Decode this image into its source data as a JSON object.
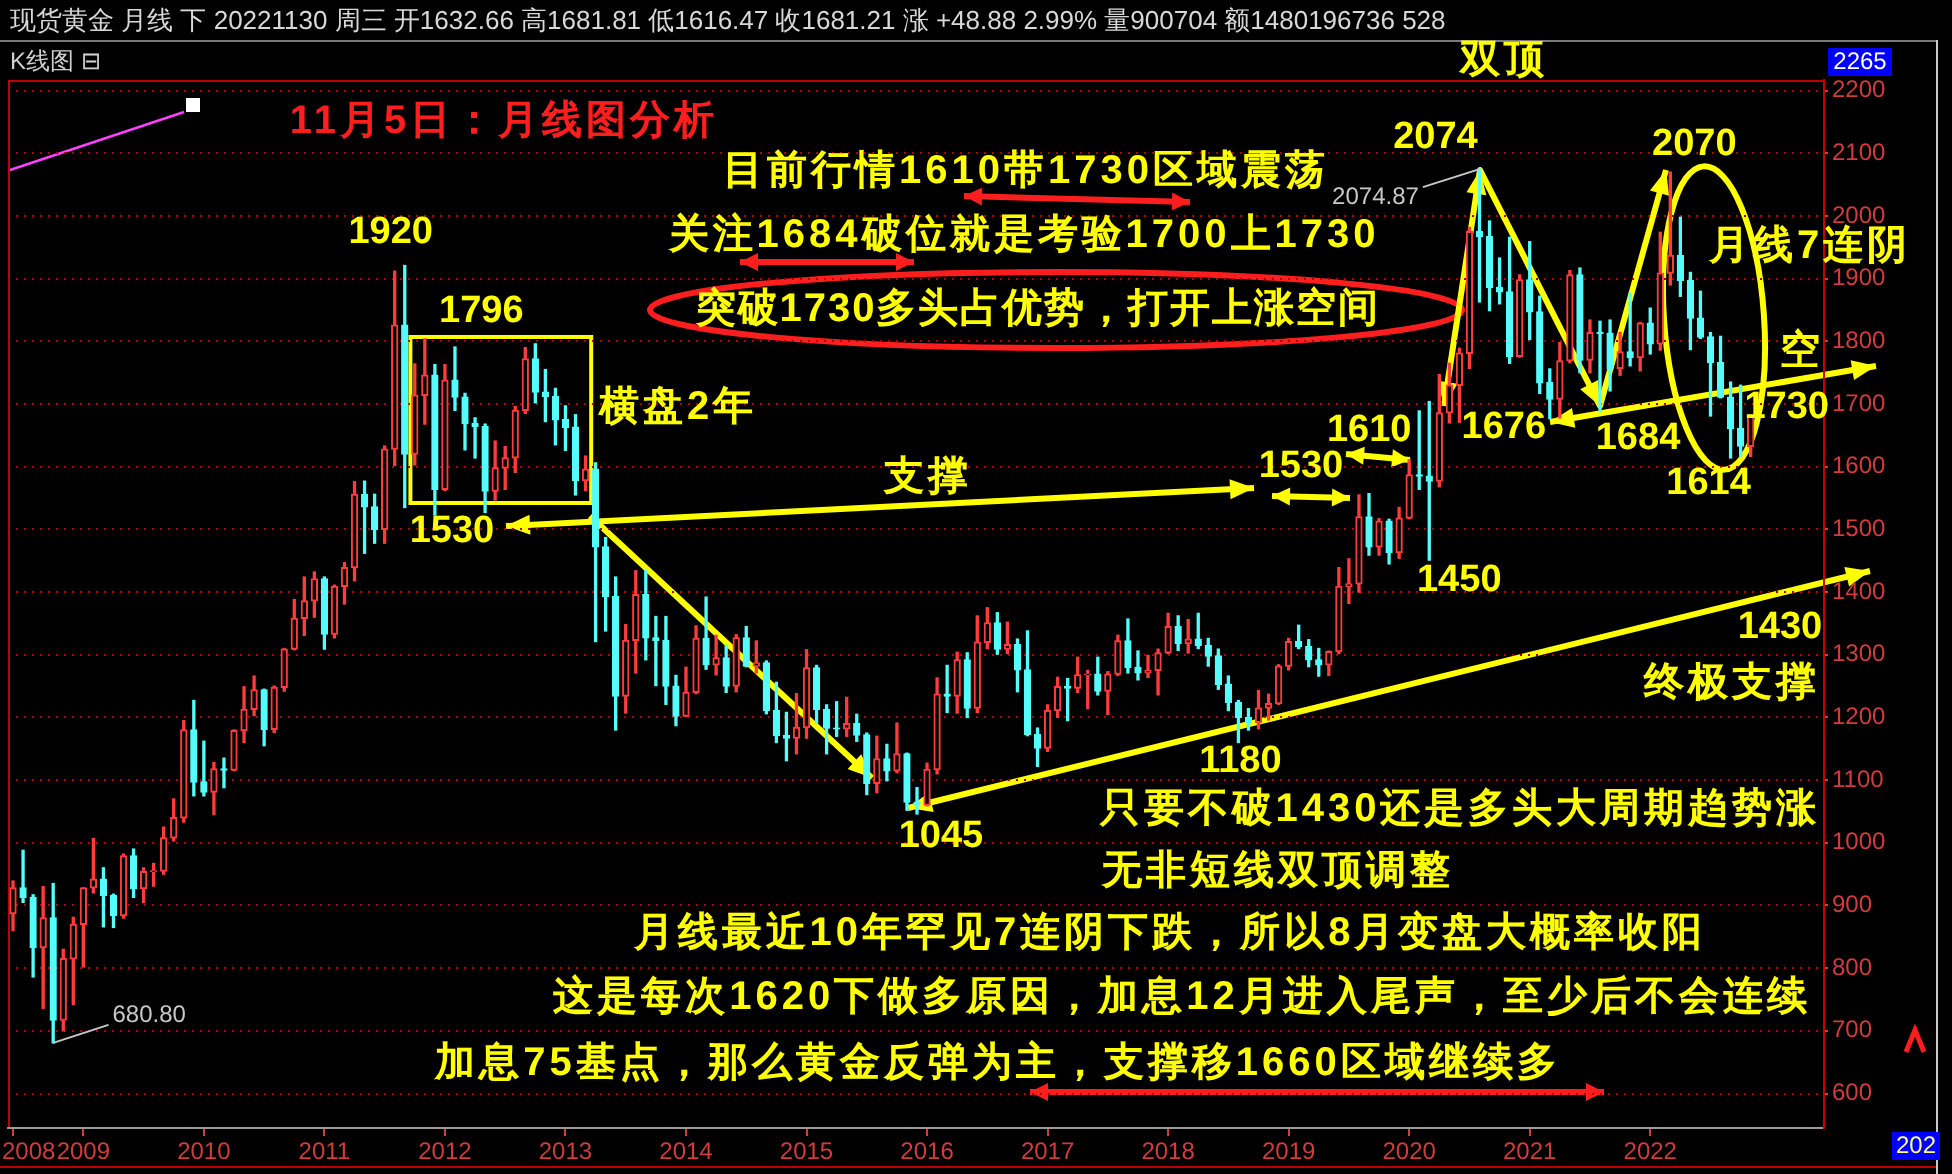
{
  "chart_data": {
    "type": "candlestick",
    "title": "11月5日：月线图分析",
    "subtitle": "现货黄金 月线 下 20221130 周三 开1632.66 高1681.81 低1616.47 收1681.21 涨 +48.88 2.99% 量900704 额1480196736 528",
    "annotations": [
      "K线图 ⊟",
      "2265",
      "202",
      "目前行情1610带1730区域震荡",
      "关注1684破位就是考验1700上1730",
      "突破1730多头占优势，打开上涨空间",
      "横盘2年",
      "支撑",
      "双顶",
      "月线7连阴",
      "空",
      "终极支撑",
      "只要不破1430还是多头大周期趋势涨",
      "无非短线双顶调整",
      "月线最近10年罕见7连阴下跌，所以8月变盘大概率收阳",
      "这是每次1620下做多原因，加息12月进入尾声，至少后不会连续",
      "加息75基点，那么黄金反弹为主，支撑移1660区域继续多",
      {
        "text": "1920",
        "x": "2011-09",
        "y": 1920
      },
      {
        "text": "1796",
        "x": "2012-10",
        "y": 1796
      },
      "1530",
      {
        "text": "1045",
        "x": "2015-12",
        "y": 1045
      },
      {
        "text": "1180",
        "x": "2018-08",
        "y": 1180
      },
      {
        "text": "1450",
        "x": "2020-03",
        "y": 1450
      },
      {
        "text": "1610",
        "x": "2020-01",
        "y": 1610
      },
      {
        "text": "1530",
        "x": "2019-08",
        "y": 1530
      },
      {
        "text": "1676",
        "x": "2021-03",
        "y": 1676
      },
      {
        "text": "1684",
        "x": "2021-08",
        "y": 1684
      },
      {
        "text": "2074",
        "x": "2020-08",
        "y": 2074
      },
      {
        "text": "2070",
        "x": "2022-03",
        "y": 2070
      },
      {
        "text": "1614",
        "x": "2022-09",
        "y": 1614
      },
      {
        "text": "1730",
        "x": "2022-11",
        "y": 1730
      },
      "1430",
      {
        "text": "2074.87",
        "x": "2020-08",
        "y": 2074.87
      },
      {
        "text": "680.80",
        "x": "2008-10",
        "y": 680.8
      }
    ],
    "x": [
      "2008-06",
      "2008-07",
      "2008-08",
      "2008-09",
      "2008-10",
      "2008-11",
      "2008-12",
      "2009-01",
      "2009-02",
      "2009-03",
      "2009-04",
      "2009-05",
      "2009-06",
      "2009-07",
      "2009-08",
      "2009-09",
      "2009-10",
      "2009-11",
      "2009-12",
      "2010-01",
      "2010-02",
      "2010-03",
      "2010-04",
      "2010-05",
      "2010-06",
      "2010-07",
      "2010-08",
      "2010-09",
      "2010-10",
      "2010-11",
      "2010-12",
      "2011-01",
      "2011-02",
      "2011-03",
      "2011-04",
      "2011-05",
      "2011-06",
      "2011-07",
      "2011-08",
      "2011-09",
      "2011-10",
      "2011-11",
      "2011-12",
      "2012-01",
      "2012-02",
      "2012-03",
      "2012-04",
      "2012-05",
      "2012-06",
      "2012-07",
      "2012-08",
      "2012-09",
      "2012-10",
      "2012-11",
      "2012-12",
      "2013-01",
      "2013-02",
      "2013-03",
      "2013-04",
      "2013-05",
      "2013-06",
      "2013-07",
      "2013-08",
      "2013-09",
      "2013-10",
      "2013-11",
      "2013-12",
      "2014-01",
      "2014-02",
      "2014-03",
      "2014-04",
      "2014-05",
      "2014-06",
      "2014-07",
      "2014-08",
      "2014-09",
      "2014-10",
      "2014-11",
      "2014-12",
      "2015-01",
      "2015-02",
      "2015-03",
      "2015-04",
      "2015-05",
      "2015-06",
      "2015-07",
      "2015-08",
      "2015-09",
      "2015-10",
      "2015-11",
      "2015-12",
      "2016-01",
      "2016-02",
      "2016-03",
      "2016-04",
      "2016-05",
      "2016-06",
      "2016-07",
      "2016-08",
      "2016-09",
      "2016-10",
      "2016-11",
      "2016-12",
      "2017-01",
      "2017-02",
      "2017-03",
      "2017-04",
      "2017-05",
      "2017-06",
      "2017-07",
      "2017-08",
      "2017-09",
      "2017-10",
      "2017-11",
      "2017-12",
      "2018-01",
      "2018-02",
      "2018-03",
      "2018-04",
      "2018-05",
      "2018-06",
      "2018-07",
      "2018-08",
      "2018-09",
      "2018-10",
      "2018-11",
      "2018-12",
      "2019-01",
      "2019-02",
      "2019-03",
      "2019-04",
      "2019-05",
      "2019-06",
      "2019-07",
      "2019-08",
      "2019-09",
      "2019-10",
      "2019-11",
      "2019-12",
      "2020-01",
      "2020-02",
      "2020-03",
      "2020-04",
      "2020-05",
      "2020-06",
      "2020-07",
      "2020-08",
      "2020-09",
      "2020-10",
      "2020-11",
      "2020-12",
      "2021-01",
      "2021-02",
      "2021-03",
      "2021-04",
      "2021-05",
      "2021-06",
      "2021-07",
      "2021-08",
      "2021-09",
      "2021-10",
      "2021-11",
      "2021-12",
      "2022-01",
      "2022-02",
      "2022-03",
      "2022-04",
      "2022-05",
      "2022-06",
      "2022-07",
      "2022-08",
      "2022-09",
      "2022-10",
      "2022-11"
    ],
    "ohlc": [
      [
        887,
        939,
        860,
        928
      ],
      [
        928,
        988,
        905,
        913
      ],
      [
        913,
        917,
        786,
        833
      ],
      [
        833,
        930,
        736,
        880
      ],
      [
        880,
        935,
        680.8,
        717
      ],
      [
        717,
        830,
        700,
        815
      ],
      [
        815,
        881,
        742,
        870
      ],
      [
        870,
        928,
        802,
        928
      ],
      [
        928,
        1007,
        920,
        942
      ],
      [
        942,
        960,
        866,
        916
      ],
      [
        916,
        918,
        865,
        884
      ],
      [
        884,
        982,
        880,
        979
      ],
      [
        979,
        990,
        913,
        927
      ],
      [
        927,
        960,
        905,
        954
      ],
      [
        954,
        967,
        931,
        955
      ],
      [
        955,
        1025,
        950,
        1008
      ],
      [
        1008,
        1070,
        1003,
        1040
      ],
      [
        1040,
        1195,
        1033,
        1180
      ],
      [
        1180,
        1227,
        1075,
        1097
      ],
      [
        1097,
        1162,
        1075,
        1081
      ],
      [
        1081,
        1128,
        1045,
        1118
      ],
      [
        1118,
        1135,
        1088,
        1116
      ],
      [
        1116,
        1180,
        1115,
        1179
      ],
      [
        1179,
        1249,
        1160,
        1213
      ],
      [
        1213,
        1266,
        1203,
        1244
      ],
      [
        1244,
        1245,
        1155,
        1181
      ],
      [
        1181,
        1250,
        1176,
        1248
      ],
      [
        1248,
        1310,
        1242,
        1309
      ],
      [
        1309,
        1388,
        1308,
        1358
      ],
      [
        1358,
        1424,
        1331,
        1386
      ],
      [
        1386,
        1432,
        1360,
        1421
      ],
      [
        1421,
        1424,
        1309,
        1333
      ],
      [
        1333,
        1411,
        1327,
        1409
      ],
      [
        1409,
        1447,
        1381,
        1439
      ],
      [
        1439,
        1576,
        1418,
        1556
      ],
      [
        1556,
        1577,
        1462,
        1536
      ],
      [
        1536,
        1556,
        1478,
        1500
      ],
      [
        1500,
        1633,
        1478,
        1628
      ],
      [
        1628,
        1912,
        1602,
        1826
      ],
      [
        1826,
        1921,
        1535,
        1620
      ],
      [
        1620,
        1764,
        1603,
        1714
      ],
      [
        1714,
        1804,
        1668,
        1746
      ],
      [
        1746,
        1763,
        1523,
        1564
      ],
      [
        1564,
        1763,
        1562,
        1738
      ],
      [
        1738,
        1791,
        1690,
        1711
      ],
      [
        1711,
        1717,
        1627,
        1669
      ],
      [
        1669,
        1678,
        1614,
        1664
      ],
      [
        1664,
        1668,
        1527,
        1561
      ],
      [
        1561,
        1641,
        1547,
        1598
      ],
      [
        1598,
        1632,
        1564,
        1614
      ],
      [
        1614,
        1696,
        1591,
        1690
      ],
      [
        1690,
        1790,
        1685,
        1772
      ],
      [
        1772,
        1796,
        1702,
        1719
      ],
      [
        1719,
        1755,
        1672,
        1712
      ],
      [
        1712,
        1725,
        1635,
        1675
      ],
      [
        1675,
        1697,
        1626,
        1663
      ],
      [
        1663,
        1683,
        1555,
        1578
      ],
      [
        1578,
        1617,
        1562,
        1596
      ],
      [
        1596,
        1606,
        1321,
        1472
      ],
      [
        1472,
        1487,
        1338,
        1393
      ],
      [
        1393,
        1424,
        1180,
        1234
      ],
      [
        1234,
        1348,
        1207,
        1323
      ],
      [
        1323,
        1434,
        1271,
        1396
      ],
      [
        1396,
        1434,
        1292,
        1327
      ],
      [
        1327,
        1361,
        1251,
        1323
      ],
      [
        1323,
        1361,
        1221,
        1250
      ],
      [
        1250,
        1267,
        1187,
        1202
      ],
      [
        1202,
        1280,
        1202,
        1240
      ],
      [
        1240,
        1346,
        1238,
        1326
      ],
      [
        1326,
        1392,
        1277,
        1284
      ],
      [
        1284,
        1331,
        1268,
        1295
      ],
      [
        1295,
        1315,
        1240,
        1250
      ],
      [
        1250,
        1332,
        1241,
        1327
      ],
      [
        1327,
        1345,
        1281,
        1282
      ],
      [
        1282,
        1322,
        1271,
        1287
      ],
      [
        1287,
        1290,
        1206,
        1211
      ],
      [
        1211,
        1256,
        1160,
        1171
      ],
      [
        1171,
        1208,
        1131,
        1167
      ],
      [
        1167,
        1238,
        1142,
        1184
      ],
      [
        1184,
        1308,
        1167,
        1279
      ],
      [
        1279,
        1283,
        1191,
        1213
      ],
      [
        1213,
        1220,
        1142,
        1183
      ],
      [
        1183,
        1225,
        1170,
        1182
      ],
      [
        1182,
        1232,
        1170,
        1190
      ],
      [
        1190,
        1205,
        1162,
        1172
      ],
      [
        1172,
        1175,
        1077,
        1095
      ],
      [
        1095,
        1170,
        1080,
        1134
      ],
      [
        1134,
        1157,
        1099,
        1115
      ],
      [
        1115,
        1191,
        1112,
        1142
      ],
      [
        1142,
        1143,
        1052,
        1065
      ],
      [
        1065,
        1088,
        1046,
        1060
      ],
      [
        1060,
        1127,
        1059,
        1117
      ],
      [
        1117,
        1263,
        1110,
        1237
      ],
      [
        1237,
        1283,
        1208,
        1234
      ],
      [
        1234,
        1304,
        1207,
        1292
      ],
      [
        1292,
        1303,
        1200,
        1215
      ],
      [
        1215,
        1362,
        1208,
        1320
      ],
      [
        1320,
        1375,
        1310,
        1351
      ],
      [
        1351,
        1367,
        1301,
        1309
      ],
      [
        1309,
        1352,
        1302,
        1316
      ],
      [
        1316,
        1325,
        1241,
        1276
      ],
      [
        1276,
        1338,
        1171,
        1173
      ],
      [
        1173,
        1183,
        1122,
        1151
      ],
      [
        1151,
        1220,
        1146,
        1211
      ],
      [
        1211,
        1264,
        1200,
        1249
      ],
      [
        1249,
        1262,
        1195,
        1247
      ],
      [
        1247,
        1296,
        1240,
        1268
      ],
      [
        1268,
        1275,
        1214,
        1269
      ],
      [
        1269,
        1296,
        1236,
        1242
      ],
      [
        1242,
        1273,
        1205,
        1269
      ],
      [
        1269,
        1331,
        1267,
        1322
      ],
      [
        1322,
        1357,
        1271,
        1280
      ],
      [
        1280,
        1306,
        1260,
        1271
      ],
      [
        1271,
        1299,
        1264,
        1275
      ],
      [
        1275,
        1309,
        1236,
        1303
      ],
      [
        1303,
        1366,
        1302,
        1345
      ],
      [
        1345,
        1362,
        1307,
        1318
      ],
      [
        1318,
        1356,
        1303,
        1325
      ],
      [
        1325,
        1366,
        1310,
        1315
      ],
      [
        1315,
        1326,
        1282,
        1298
      ],
      [
        1298,
        1309,
        1245,
        1253
      ],
      [
        1253,
        1266,
        1211,
        1224
      ],
      [
        1224,
        1227,
        1160,
        1200
      ],
      [
        1200,
        1214,
        1180,
        1192
      ],
      [
        1192,
        1243,
        1182,
        1215
      ],
      [
        1215,
        1237,
        1196,
        1222
      ],
      [
        1222,
        1284,
        1221,
        1282
      ],
      [
        1282,
        1326,
        1276,
        1321
      ],
      [
        1321,
        1347,
        1310,
        1313
      ],
      [
        1313,
        1324,
        1281,
        1292
      ],
      [
        1292,
        1310,
        1266,
        1284
      ],
      [
        1284,
        1306,
        1267,
        1305
      ],
      [
        1305,
        1439,
        1302,
        1409
      ],
      [
        1409,
        1453,
        1382,
        1413
      ],
      [
        1413,
        1555,
        1400,
        1520
      ],
      [
        1520,
        1557,
        1459,
        1472
      ],
      [
        1472,
        1517,
        1459,
        1513
      ],
      [
        1513,
        1516,
        1445,
        1463
      ],
      [
        1463,
        1535,
        1454,
        1518
      ],
      [
        1518,
        1611,
        1517,
        1587
      ],
      [
        1587,
        1689,
        1564,
        1585
      ],
      [
        1585,
        1704,
        1451,
        1577
      ],
      [
        1577,
        1747,
        1568,
        1686
      ],
      [
        1686,
        1765,
        1670,
        1730
      ],
      [
        1730,
        1789,
        1671,
        1781
      ],
      [
        1781,
        1982,
        1757,
        1975
      ],
      [
        1975,
        2074.87,
        1863,
        1967
      ],
      [
        1967,
        1992,
        1849,
        1886
      ],
      [
        1886,
        1933,
        1860,
        1879
      ],
      [
        1879,
        1966,
        1765,
        1776
      ],
      [
        1776,
        1906,
        1775,
        1898
      ],
      [
        1898,
        1959,
        1803,
        1847
      ],
      [
        1847,
        1872,
        1717,
        1734
      ],
      [
        1734,
        1756,
        1677,
        1708
      ],
      [
        1708,
        1798,
        1678,
        1769
      ],
      [
        1769,
        1913,
        1766,
        1906
      ],
      [
        1906,
        1917,
        1750,
        1770
      ],
      [
        1770,
        1834,
        1750,
        1814
      ],
      [
        1814,
        1832,
        1688,
        1813
      ],
      [
        1813,
        1834,
        1721,
        1757
      ],
      [
        1757,
        1814,
        1746,
        1783
      ],
      [
        1783,
        1877,
        1761,
        1774
      ],
      [
        1774,
        1830,
        1753,
        1829
      ],
      [
        1829,
        1853,
        1780,
        1796
      ],
      [
        1796,
        1974,
        1786,
        1909
      ],
      [
        1909,
        2070,
        1890,
        1937
      ],
      [
        1937,
        1998,
        1872,
        1897
      ],
      [
        1897,
        1910,
        1787,
        1837
      ],
      [
        1837,
        1880,
        1805,
        1807
      ],
      [
        1807,
        1814,
        1681,
        1766
      ],
      [
        1766,
        1808,
        1710,
        1711
      ],
      [
        1711,
        1735,
        1614,
        1661
      ],
      [
        1661,
        1730,
        1617,
        1633
      ],
      [
        1632.66,
        1681.81,
        1616.47,
        1681.21
      ]
    ],
    "colors": [
      "#ff3c3c",
      "#54fcfc",
      "#54fcfc",
      "#ff3c3c",
      "#54fcfc",
      "#ff3c3c",
      "#ff3c3c",
      "#ff3c3c",
      "#ff3c3c",
      "#54fcfc",
      "#54fcfc",
      "#ff3c3c",
      "#54fcfc",
      "#ff3c3c",
      "#ff3c3c",
      "#ff3c3c",
      "#ff3c3c",
      "#ff3c3c",
      "#54fcfc",
      "#54fcfc",
      "#ff3c3c",
      "#54fcfc",
      "#ff3c3c",
      "#ff3c3c",
      "#ff3c3c",
      "#54fcfc",
      "#ff3c3c",
      "#ff3c3c",
      "#ff3c3c",
      "#ff3c3c",
      "#ff3c3c",
      "#54fcfc",
      "#ff3c3c",
      "#ff3c3c",
      "#ff3c3c",
      "#54fcfc",
      "#54fcfc",
      "#ff3c3c",
      "#ff3c3c",
      "#54fcfc",
      "#ff3c3c",
      "#ff3c3c",
      "#54fcfc",
      "#ff3c3c",
      "#54fcfc",
      "#54fcfc",
      "#54fcfc",
      "#54fcfc",
      "#ff3c3c",
      "#ff3c3c",
      "#ff3c3c",
      "#ff3c3c",
      "#54fcfc",
      "#54fcfc",
      "#54fcfc",
      "#54fcfc",
      "#54fcfc",
      "#ff3c3c",
      "#54fcfc",
      "#54fcfc",
      "#54fcfc",
      "#ff3c3c",
      "#ff3c3c",
      "#54fcfc",
      "#54fcfc",
      "#54fcfc",
      "#54fcfc",
      "#ff3c3c",
      "#ff3c3c",
      "#54fcfc",
      "#ff3c3c",
      "#54fcfc",
      "#ff3c3c",
      "#54fcfc",
      "#ff3c3c",
      "#54fcfc",
      "#54fcfc",
      "#54fcfc",
      "#ff3c3c",
      "#ff3c3c",
      "#54fcfc",
      "#54fcfc",
      "#54fcfc",
      "#ff3c3c",
      "#54fcfc",
      "#54fcfc",
      "#ff3c3c",
      "#54fcfc",
      "#ff3c3c",
      "#54fcfc",
      "#54fcfc",
      "#ff3c3c",
      "#ff3c3c",
      "#54fcfc",
      "#ff3c3c",
      "#54fcfc",
      "#ff3c3c",
      "#ff3c3c",
      "#54fcfc",
      "#ff3c3c",
      "#54fcfc",
      "#54fcfc",
      "#54fcfc",
      "#ff3c3c",
      "#ff3c3c",
      "#54fcfc",
      "#ff3c3c",
      "#ff3c3c",
      "#54fcfc",
      "#ff3c3c",
      "#ff3c3c",
      "#54fcfc",
      "#54fcfc",
      "#ff3c3c",
      "#ff3c3c",
      "#ff3c3c",
      "#54fcfc",
      "#ff3c3c",
      "#54fcfc",
      "#54fcfc",
      "#54fcfc",
      "#54fcfc",
      "#54fcfc",
      "#54fcfc",
      "#ff3c3c",
      "#ff3c3c",
      "#ff3c3c",
      "#ff3c3c",
      "#54fcfc",
      "#54fcfc",
      "#54fcfc",
      "#ff3c3c",
      "#ff3c3c",
      "#ff3c3c",
      "#ff3c3c",
      "#54fcfc",
      "#ff3c3c",
      "#54fcfc",
      "#ff3c3c",
      "#ff3c3c",
      "#54fcfc",
      "#54fcfc",
      "#ff3c3c",
      "#ff3c3c",
      "#ff3c3c",
      "#ff3c3c",
      "#54fcfc",
      "#54fcfc",
      "#54fcfc",
      "#54fcfc",
      "#ff3c3c",
      "#54fcfc",
      "#54fcfc",
      "#54fcfc",
      "#ff3c3c",
      "#ff3c3c",
      "#54fcfc",
      "#ff3c3c",
      "#54fcfc",
      "#54fcfc",
      "#ff3c3c",
      "#54fcfc",
      "#ff3c3c",
      "#54fcfc",
      "#ff3c3c",
      "#ff3c3c",
      "#54fcfc",
      "#54fcfc",
      "#54fcfc",
      "#54fcfc",
      "#54fcfc",
      "#54fcfc",
      "#54fcfc",
      "#ff3c3c"
    ],
    "xlim": [
      "2008-05-16",
      "2023-06-10"
    ],
    "xticks": [
      {
        "value": "2008-06",
        "label": "2008"
      },
      "2009",
      "2010",
      "2011",
      "2012",
      "2013",
      "2014",
      "2015",
      "2016",
      "2017",
      "2018",
      "2019",
      "2020",
      "2021",
      "2022"
    ],
    "ylim": [
      545,
      2217
    ],
    "yticks": [
      600,
      700,
      800,
      900,
      1000,
      1100,
      1200,
      1300,
      1400,
      1500,
      1600,
      1700,
      1800,
      1900,
      2000,
      2100,
      2200
    ],
    "grid": "y"
  }
}
